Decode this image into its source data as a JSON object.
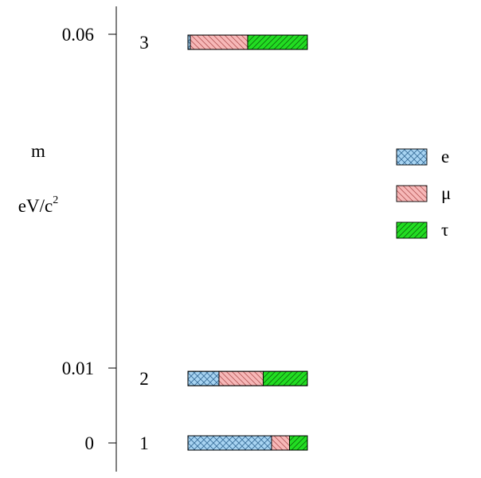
{
  "chart_data": {
    "type": "bar",
    "orientation": "horizontal",
    "stacked": true,
    "ylabel_line1": "m",
    "ylabel_line2": "eV/c",
    "ylabel_superscript": "2",
    "y_ticks": [
      {
        "value": 0,
        "label": "0"
      },
      {
        "value": 0.01,
        "label": "0.01"
      },
      {
        "value": 0.06,
        "label": "0.06"
      }
    ],
    "legend_position": "right",
    "grid": false,
    "states": [
      {
        "label": "1",
        "mass": 0,
        "fractions": {
          "e": 0.7,
          "mu": 0.15,
          "tau": 0.15
        }
      },
      {
        "label": "2",
        "mass": 0.0086,
        "fractions": {
          "e": 0.26,
          "mu": 0.37,
          "tau": 0.37
        }
      },
      {
        "label": "3",
        "mass": 0.0588,
        "fractions": {
          "e": 0.02,
          "mu": 0.48,
          "tau": 0.5
        }
      }
    ],
    "series": [
      {
        "key": "e",
        "name": "e",
        "color": "#a8d4f2",
        "pattern": "crosshatch"
      },
      {
        "key": "mu",
        "name": "μ",
        "color": "#f7b8b8",
        "pattern": "diagonal-down"
      },
      {
        "key": "tau",
        "name": "τ",
        "color": "#22dd22",
        "pattern": "diagonal-up"
      }
    ]
  }
}
